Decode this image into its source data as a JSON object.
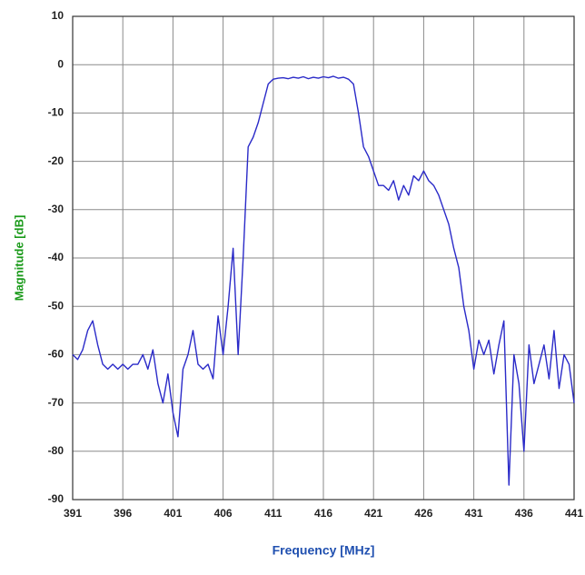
{
  "chart_data": {
    "type": "line",
    "x_label": "Frequency [MHz]",
    "y_label": "Magnitude [dB]",
    "x": [
      391,
      391.5,
      392,
      392.5,
      393,
      393.5,
      394,
      394.5,
      395,
      395.5,
      396,
      396.5,
      397,
      397.5,
      398,
      398.5,
      399,
      399.5,
      400,
      400.5,
      401,
      401.5,
      402,
      402.5,
      403,
      403.5,
      404,
      404.5,
      405,
      405.5,
      406,
      406.5,
      407,
      407.5,
      408,
      408.5,
      409,
      409.5,
      410,
      410.5,
      411,
      411.5,
      412,
      412.5,
      413,
      413.5,
      414,
      414.5,
      415,
      415.5,
      416,
      416.5,
      417,
      417.5,
      418,
      418.5,
      419,
      419.5,
      420,
      420.5,
      421,
      421.5,
      422,
      422.5,
      423,
      423.5,
      424,
      424.5,
      425,
      425.5,
      426,
      426.5,
      427,
      427.5,
      428,
      428.5,
      429,
      429.5,
      430,
      430.5,
      431,
      431.5,
      432,
      432.5,
      433,
      433.5,
      434,
      434.5,
      435,
      435.5,
      436,
      436.5,
      437,
      437.5,
      438,
      438.5,
      439,
      439.5,
      440,
      440.5,
      441
    ],
    "values": [
      -60,
      -61,
      -59,
      -55,
      -53,
      -58,
      -62,
      -63,
      -62,
      -63,
      -62,
      -63,
      -62,
      -62,
      -60,
      -63,
      -59,
      -66,
      -70,
      -64,
      -72,
      -77,
      -63,
      -60,
      -55,
      -62,
      -63,
      -62,
      -65,
      -52,
      -60,
      -50,
      -38,
      -60,
      -40,
      -17,
      -15,
      -12,
      -8,
      -4,
      -3,
      -2.8,
      -2.7,
      -2.9,
      -2.6,
      -2.8,
      -2.5,
      -2.9,
      -2.6,
      -2.8,
      -2.5,
      -2.7,
      -2.4,
      -2.8,
      -2.6,
      -3,
      -4,
      -10,
      -17,
      -19,
      -22,
      -25,
      -25,
      -26,
      -24,
      -28,
      -25,
      -27,
      -23,
      -24,
      -22,
      -24,
      -25,
      -27,
      -30,
      -33,
      -38,
      -42,
      -50,
      -55,
      -63,
      -57,
      -60,
      -57,
      -64,
      -58,
      -53,
      -87,
      -60,
      -66,
      -80,
      -58,
      -66,
      -62,
      -58,
      -65,
      -55,
      -67,
      -60,
      -62,
      -70
    ],
    "color": "#2a2ac8",
    "xlim": [
      391,
      441
    ],
    "xticks": [
      391,
      396,
      401,
      406,
      411,
      416,
      421,
      426,
      431,
      436,
      441
    ],
    "ylim": [
      -90,
      10
    ],
    "yticks": [
      10,
      0,
      -10,
      -20,
      -30,
      -40,
      -50,
      -60,
      -70,
      -80,
      -90
    ],
    "grid": true
  }
}
